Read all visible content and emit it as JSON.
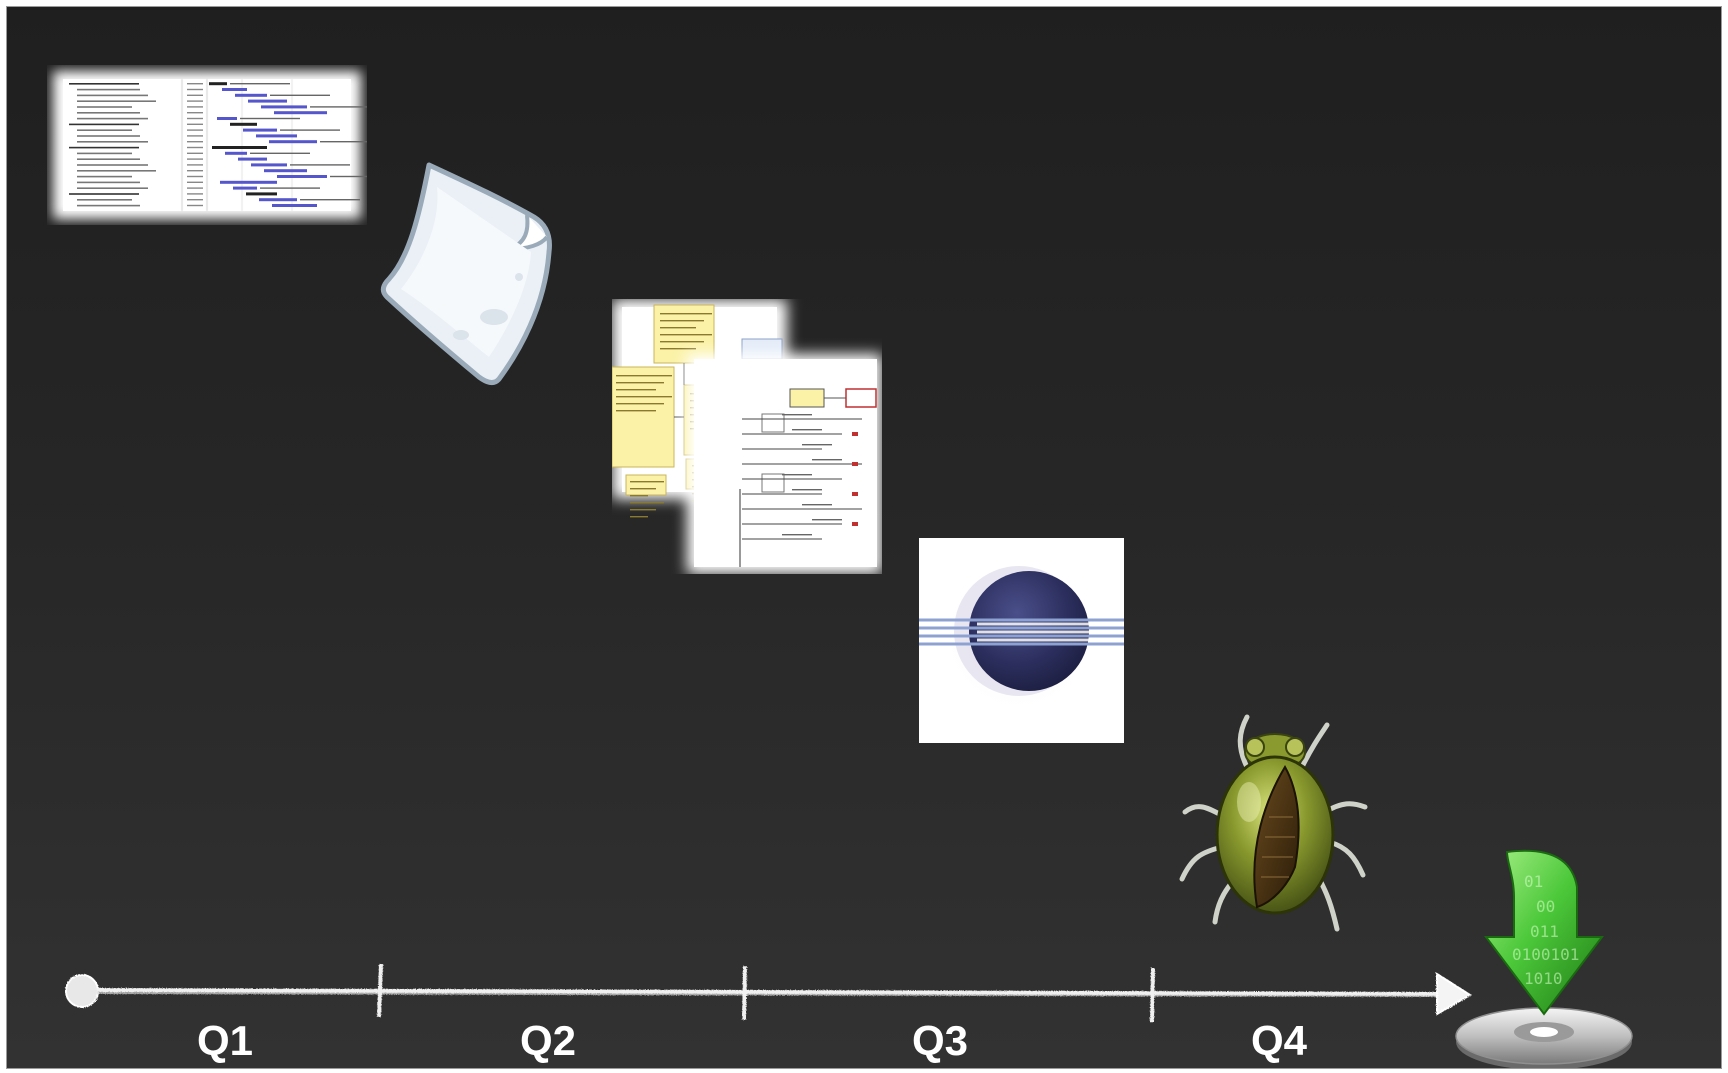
{
  "timeline": {
    "quarters": [
      "Q1",
      "Q2",
      "Q3",
      "Q4"
    ]
  },
  "icons": {
    "stage_1": "gantt-chart-icon",
    "stage_2": "blank-paper-icon",
    "stage_3": "uml-diagrams-icon",
    "stage_4": "eclipse-ide-icon",
    "stage_5": "bug-icon",
    "stage_6": "download-disc-icon"
  },
  "colors": {
    "background": "#262626",
    "line": "#f0f0f0",
    "text": "#ffffff",
    "gantt_bar": "#5555cc",
    "note_yellow": "#fbf2a8",
    "eclipse_blue": "#2c2f5e",
    "bug_green": "#7a8a2a",
    "arrow_green": "#4cc83a"
  }
}
